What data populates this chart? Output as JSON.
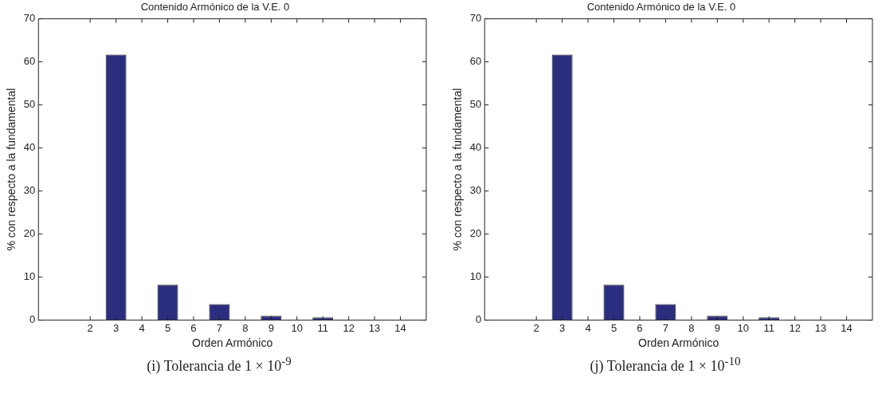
{
  "chart_data": [
    {
      "type": "bar",
      "title": "Contenido Armónico de la V.E. 0",
      "xlabel": "Orden Armónico",
      "ylabel": "% con respecto a la fundamental",
      "x": [
        2,
        3,
        4,
        5,
        6,
        7,
        8,
        9,
        10,
        11,
        12,
        13,
        14
      ],
      "series": [
        {
          "color": "#2b2d7e",
          "values": [
            0.1,
            61.7,
            0.1,
            8.2,
            0.1,
            3.7,
            0.1,
            1.0,
            0.1,
            0.6,
            0.1,
            0.1,
            0.1
          ]
        }
      ],
      "xlim": [
        0,
        15
      ],
      "xticks": [
        2,
        3,
        4,
        5,
        6,
        7,
        8,
        9,
        10,
        11,
        12,
        13,
        14
      ],
      "ylim": [
        0,
        70
      ],
      "yticks": [
        0,
        10,
        20,
        30,
        40,
        50,
        60,
        70
      ],
      "grid": false,
      "legend": false,
      "annotations": [
        "(i) Tolerancia de 1 × 10$^{-9}$"
      ]
    },
    {
      "type": "bar",
      "title": "Contenido Armónico de la V.E. 0",
      "xlabel": "Orden Armónico",
      "ylabel": "% con respecto a la fundamental",
      "x": [
        2,
        3,
        4,
        5,
        6,
        7,
        8,
        9,
        10,
        11,
        12,
        13,
        14
      ],
      "series": [
        {
          "color": "#2b2d7e",
          "values": [
            0.1,
            61.7,
            0.1,
            8.2,
            0.1,
            3.7,
            0.1,
            1.0,
            0.1,
            0.6,
            0.1,
            0.1,
            0.1
          ]
        }
      ],
      "xlim": [
        0,
        15
      ],
      "xticks": [
        2,
        3,
        4,
        5,
        6,
        7,
        8,
        9,
        10,
        11,
        12,
        13,
        14
      ],
      "ylim": [
        0,
        70
      ],
      "yticks": [
        0,
        10,
        20,
        30,
        40,
        50,
        60,
        70
      ],
      "grid": false,
      "legend": false,
      "annotations": [
        "(j) Tolerancia de 1 × 10$^{-10}$"
      ]
    }
  ]
}
